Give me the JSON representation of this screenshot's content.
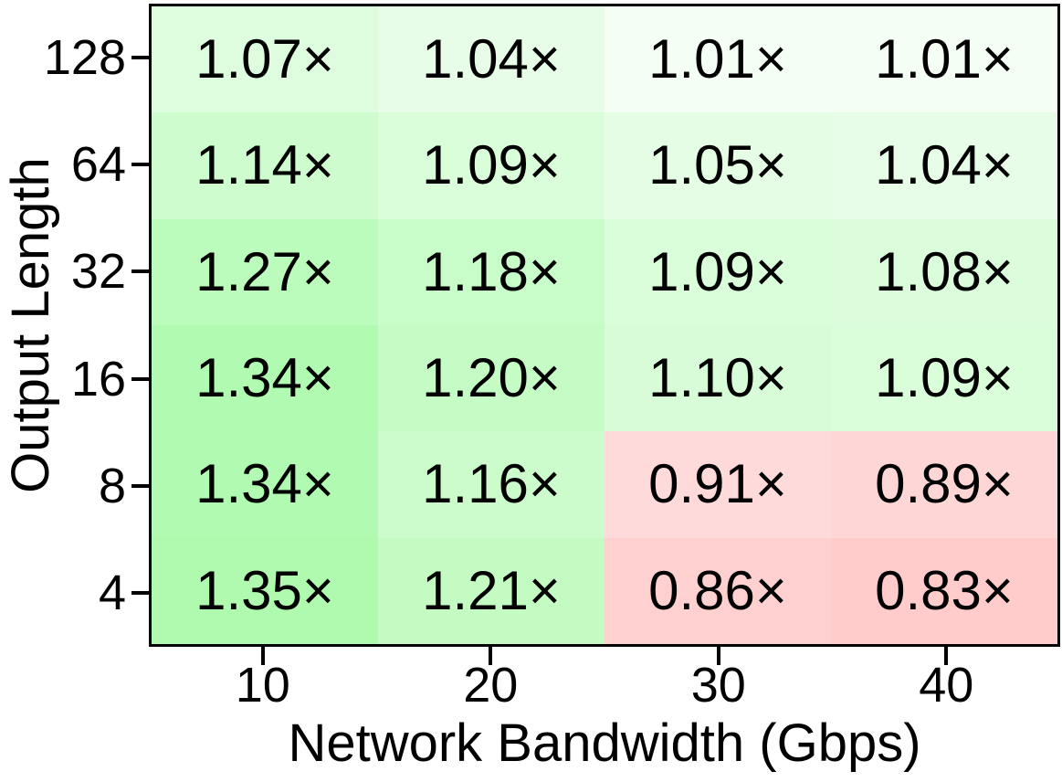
{
  "figure": {
    "background": "#ffffff",
    "frame_color": "#000000",
    "text_color": "#000000"
  },
  "chart_data": {
    "type": "heatmap",
    "title": "",
    "xlabel": "Network Bandwidth (Gbps)",
    "ylabel": "Output Length",
    "x_tick_labels": [
      "10",
      "20",
      "30",
      "40"
    ],
    "y_tick_labels": [
      "128",
      "64",
      "32",
      "16",
      "8",
      "4"
    ],
    "value_suffix": "×",
    "legend": false,
    "grid": false,
    "colormap": {
      "positive_max": "#b0fab0",
      "center": "#ffffff",
      "negative_max": "#ffcbcb",
      "vcenter": 1.0
    },
    "rows": [
      {
        "y": "128",
        "values": [
          1.07,
          1.04,
          1.01,
          1.01
        ],
        "labels": [
          "1.07×",
          "1.04×",
          "1.01×",
          "1.01×"
        ],
        "colors": [
          "#defdde",
          "#e7fde7",
          "#f4fef4",
          "#f4fef4"
        ]
      },
      {
        "y": "64",
        "values": [
          1.14,
          1.09,
          1.05,
          1.04
        ],
        "labels": [
          "1.14×",
          "1.09×",
          "1.05×",
          "1.04×"
        ],
        "colors": [
          "#cffccf",
          "#dafdda",
          "#e4fde4",
          "#e7fde7"
        ]
      },
      {
        "y": "32",
        "values": [
          1.27,
          1.18,
          1.09,
          1.08
        ],
        "labels": [
          "1.27×",
          "1.18×",
          "1.09×",
          "1.08×"
        ],
        "colors": [
          "#bbfbbb",
          "#c8fcc8",
          "#dafdda",
          "#dcfddc"
        ]
      },
      {
        "y": "16",
        "values": [
          1.34,
          1.2,
          1.1,
          1.09
        ],
        "labels": [
          "1.34×",
          "1.20×",
          "1.10×",
          "1.09×"
        ],
        "colors": [
          "#b1fab1",
          "#c5fbc5",
          "#d7fcd7",
          "#dafdda"
        ]
      },
      {
        "y": "8",
        "values": [
          1.34,
          1.16,
          0.91,
          0.89
        ],
        "labels": [
          "1.34×",
          "1.16×",
          "0.91×",
          "0.89×"
        ],
        "colors": [
          "#b1fab1",
          "#ccfccc",
          "#ffdada",
          "#ffd6d6"
        ]
      },
      {
        "y": "4",
        "values": [
          1.35,
          1.21,
          0.86,
          0.83
        ],
        "labels": [
          "1.35×",
          "1.21×",
          "0.86×",
          "0.83×"
        ],
        "colors": [
          "#b0fab0",
          "#c3fbc3",
          "#ffd0d0",
          "#ffcbcb"
        ]
      }
    ]
  }
}
